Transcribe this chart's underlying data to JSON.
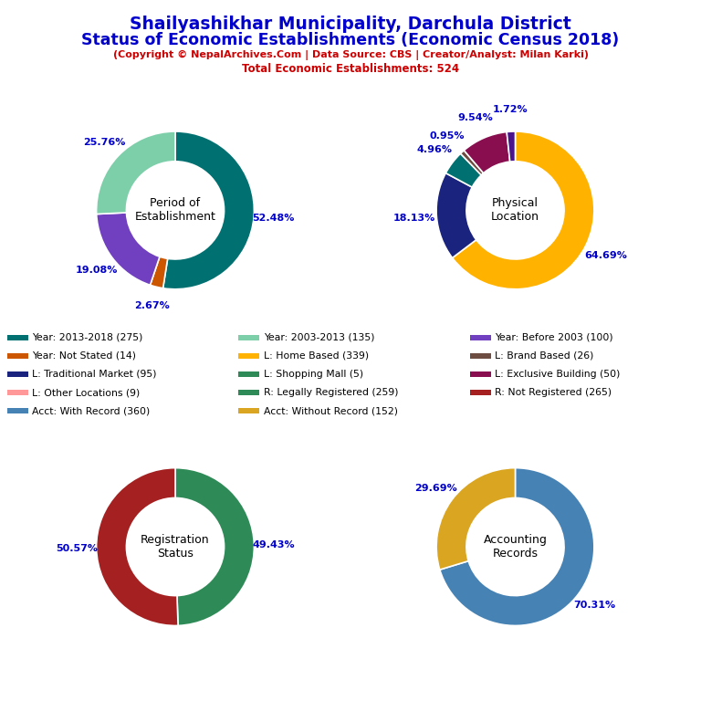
{
  "title_line1": "Shailyashikhar Municipality, Darchula District",
  "title_line2": "Status of Economic Establishments (Economic Census 2018)",
  "subtitle": "(Copyright © NepalArchives.Com | Data Source: CBS | Creator/Analyst: Milan Karki)",
  "subtitle2": "Total Economic Establishments: 524",
  "title_color": "#0000CC",
  "subtitle_color": "#CC0000",
  "pie1": {
    "label": "Period of\nEstablishment",
    "values": [
      52.48,
      2.67,
      19.08,
      25.76
    ],
    "colors": [
      "#007070",
      "#CC5500",
      "#7040C0",
      "#7DCFAA"
    ],
    "pct_labels": [
      "52.48%",
      "2.67%",
      "19.08%",
      "25.76%"
    ],
    "startangle": 90,
    "counterclock": false,
    "label_r": 1.25
  },
  "pie2": {
    "label": "Physical\nLocation",
    "values": [
      64.69,
      18.13,
      4.96,
      0.95,
      9.54,
      1.72
    ],
    "colors": [
      "#FFB300",
      "#1A237E",
      "#007070",
      "#6D4C41",
      "#880E4F",
      "#4A148C"
    ],
    "pct_labels": [
      "64.69%",
      "18.13%",
      "4.96%",
      "0.95%",
      "9.54%",
      "1.72%"
    ],
    "startangle": 90,
    "counterclock": false,
    "label_r": 1.28
  },
  "pie3": {
    "label": "Registration\nStatus",
    "values": [
      49.43,
      50.57
    ],
    "colors": [
      "#2E8B57",
      "#A52020"
    ],
    "pct_labels": [
      "49.43%",
      "50.57%"
    ],
    "startangle": 90,
    "counterclock": false,
    "label_r": 1.25
  },
  "pie4": {
    "label": "Accounting\nRecords",
    "values": [
      70.31,
      29.69
    ],
    "colors": [
      "#4682B4",
      "#DAA520"
    ],
    "pct_labels": [
      "70.31%",
      "29.69%"
    ],
    "startangle": 90,
    "counterclock": false,
    "label_r": 1.25
  },
  "legend_items": [
    {
      "label": "Year: 2013-2018 (275)",
      "color": "#007070"
    },
    {
      "label": "Year: 2003-2013 (135)",
      "color": "#7DCFAA"
    },
    {
      "label": "Year: Before 2003 (100)",
      "color": "#7040C0"
    },
    {
      "label": "Year: Not Stated (14)",
      "color": "#CC5500"
    },
    {
      "label": "L: Home Based (339)",
      "color": "#FFB300"
    },
    {
      "label": "L: Brand Based (26)",
      "color": "#6D4C41"
    },
    {
      "label": "L: Traditional Market (95)",
      "color": "#1A237E"
    },
    {
      "label": "L: Shopping Mall (5)",
      "color": "#2E8B57"
    },
    {
      "label": "L: Exclusive Building (50)",
      "color": "#880E4F"
    },
    {
      "label": "L: Other Locations (9)",
      "color": "#FF9999"
    },
    {
      "label": "R: Legally Registered (259)",
      "color": "#2E8B57"
    },
    {
      "label": "R: Not Registered (265)",
      "color": "#A52020"
    },
    {
      "label": "Acct: With Record (360)",
      "color": "#4682B4"
    },
    {
      "label": "Acct: Without Record (152)",
      "color": "#DAA520"
    }
  ],
  "pct_label_color": "#0000CC",
  "donut_width": 0.38
}
